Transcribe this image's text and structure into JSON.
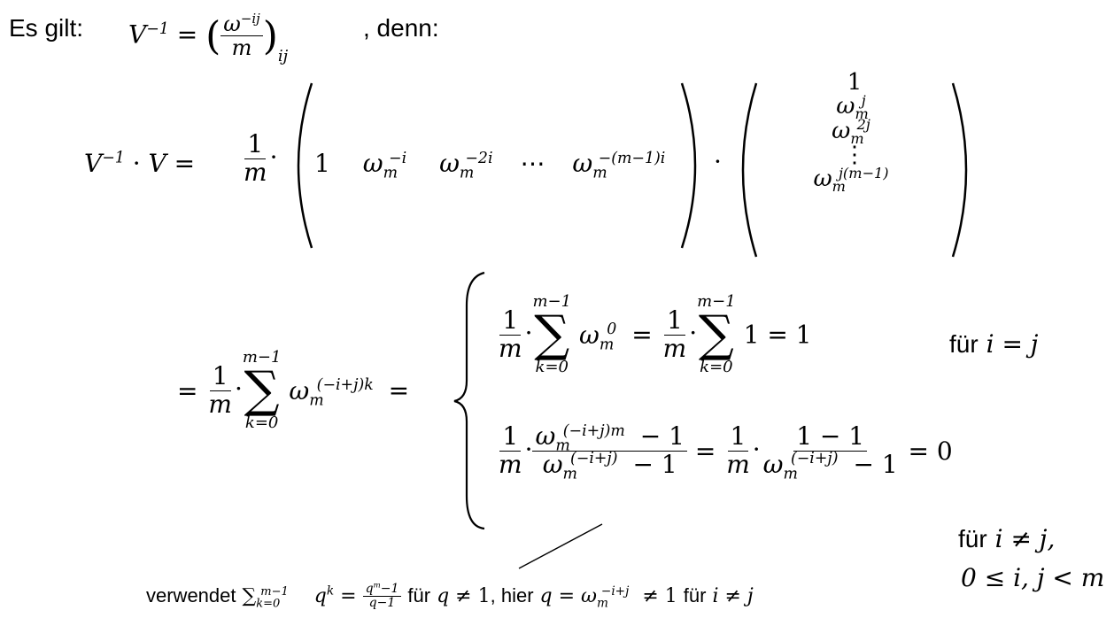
{
  "intro": {
    "label": "Es gilt:",
    "suffix": ", denn:"
  },
  "formula": {
    "lhs_product": "V⁻¹ · V =",
    "one": "1",
    "m": "m",
    "cdot": "·",
    "row_entries": [
      "1",
      "ω",
      "ω",
      "⋯",
      "ω"
    ],
    "row_sups": [
      "",
      "−i",
      "−2i",
      "",
      "−(m−1)i"
    ],
    "col_entries": [
      "1",
      "ω",
      "ω",
      "⋮",
      "ω"
    ],
    "col_sups": [
      "",
      "j",
      "2j",
      "",
      "j(m−1)"
    ],
    "sum_upper": "m−1",
    "sum_lower": "k=0",
    "sum_exp": "(−i+j)k",
    "case1_exp0": "0",
    "case1_result": "1 = 1",
    "case1_cond": "für",
    "case1_cond_math": "i = j",
    "case2_num_exp": "(−i+j)m",
    "case2_den_exp": "(−i+j)",
    "case2_num2": "1 − 1",
    "case2_result": "= 0",
    "case2_cond": "für",
    "case2_cond_math": "i ≠ j,",
    "case2_range": "0 ≤ i, j < m",
    "footnote_prefix": "verwendet",
    "footnote_text1": "für",
    "footnote_text2": ", hier",
    "footnote_text3": "für"
  }
}
